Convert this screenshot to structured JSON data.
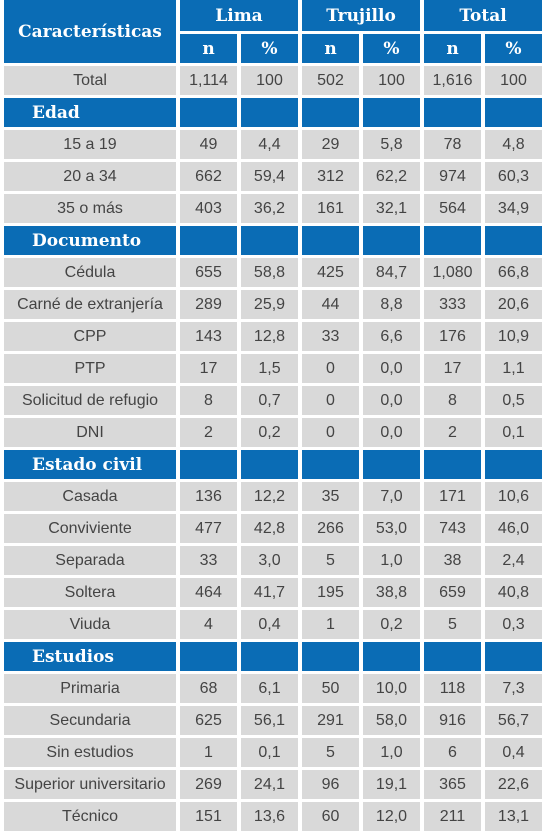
{
  "header": {
    "first": "Características",
    "groups": [
      "Lima",
      "Trujillo",
      "Total"
    ],
    "subheaders": [
      "n",
      "%",
      "n",
      "%",
      "n",
      "%"
    ]
  },
  "total_row": {
    "label": "Total",
    "cells": [
      "1,114",
      "100",
      "502",
      "100",
      "1,616",
      "100"
    ]
  },
  "sections": [
    {
      "title": "Edad",
      "rows": [
        {
          "label": "15 a 19",
          "cells": [
            "49",
            "4,4",
            "29",
            "5,8",
            "78",
            "4,8"
          ]
        },
        {
          "label": "20 a 34",
          "cells": [
            "662",
            "59,4",
            "312",
            "62,2",
            "974",
            "60,3"
          ]
        },
        {
          "label": "35 o más",
          "cells": [
            "403",
            "36,2",
            "161",
            "32,1",
            "564",
            "34,9"
          ]
        }
      ]
    },
    {
      "title": "Documento",
      "rows": [
        {
          "label": "Cédula",
          "cells": [
            "655",
            "58,8",
            "425",
            "84,7",
            "1,080",
            "66,8"
          ]
        },
        {
          "label": "Carné de extranjería",
          "cells": [
            "289",
            "25,9",
            "44",
            "8,8",
            "333",
            "20,6"
          ]
        },
        {
          "label": "CPP",
          "cells": [
            "143",
            "12,8",
            "33",
            "6,6",
            "176",
            "10,9"
          ]
        },
        {
          "label": "PTP",
          "cells": [
            "17",
            "1,5",
            "0",
            "0,0",
            "17",
            "1,1"
          ]
        },
        {
          "label": "Solicitud de refugio",
          "cells": [
            "8",
            "0,7",
            "0",
            "0,0",
            "8",
            "0,5"
          ]
        },
        {
          "label": "DNI",
          "cells": [
            "2",
            "0,2",
            "0",
            "0,0",
            "2",
            "0,1"
          ]
        }
      ]
    },
    {
      "title": "Estado civil",
      "rows": [
        {
          "label": "Casada",
          "cells": [
            "136",
            "12,2",
            "35",
            "7,0",
            "171",
            "10,6"
          ]
        },
        {
          "label": "Conviviente",
          "cells": [
            "477",
            "42,8",
            "266",
            "53,0",
            "743",
            "46,0"
          ]
        },
        {
          "label": "Separada",
          "cells": [
            "33",
            "3,0",
            "5",
            "1,0",
            "38",
            "2,4"
          ]
        },
        {
          "label": "Soltera",
          "cells": [
            "464",
            "41,7",
            "195",
            "38,8",
            "659",
            "40,8"
          ]
        },
        {
          "label": "Viuda",
          "cells": [
            "4",
            "0,4",
            "1",
            "0,2",
            "5",
            "0,3"
          ]
        }
      ]
    },
    {
      "title": "Estudios",
      "rows": [
        {
          "label": "Primaria",
          "cells": [
            "68",
            "6,1",
            "50",
            "10,0",
            "118",
            "7,3"
          ]
        },
        {
          "label": "Secundaria",
          "cells": [
            "625",
            "56,1",
            "291",
            "58,0",
            "916",
            "56,7"
          ]
        },
        {
          "label": "Sin estudios",
          "cells": [
            "1",
            "0,1",
            "5",
            "1,0",
            "6",
            "0,4"
          ]
        },
        {
          "label": "Superior universitario",
          "cells": [
            "269",
            "24,1",
            "96",
            "19,1",
            "365",
            "22,6"
          ]
        },
        {
          "label": "Técnico",
          "cells": [
            "151",
            "13,6",
            "60",
            "12,0",
            "211",
            "13,1"
          ]
        }
      ]
    }
  ]
}
